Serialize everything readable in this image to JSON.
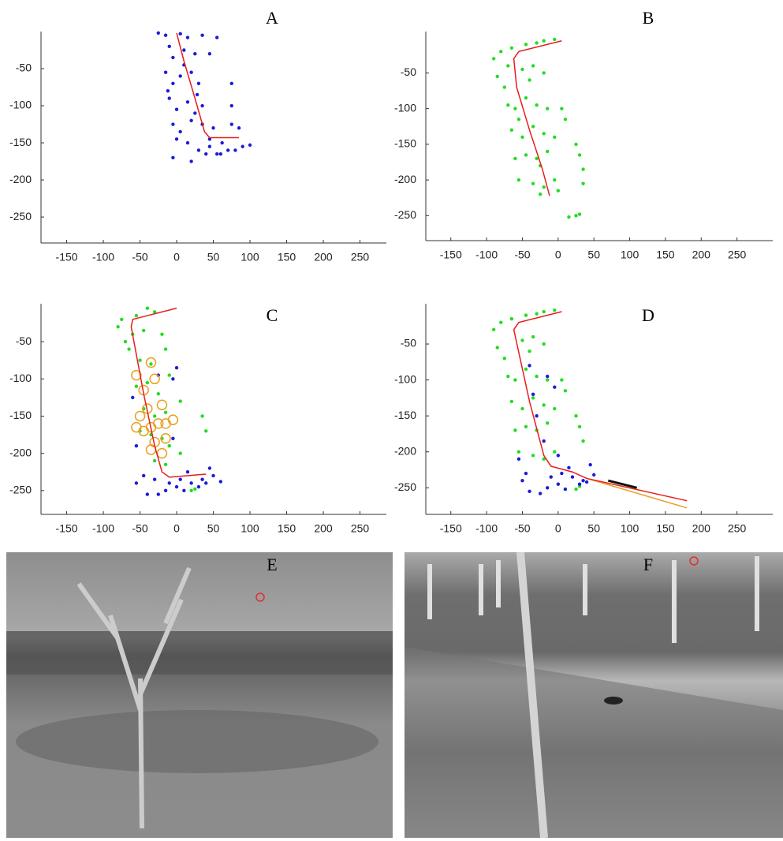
{
  "chart_data": [
    {
      "type": "scatter",
      "label": "A",
      "xlim": [
        -185,
        286
      ],
      "ylim": [
        -285,
        0
      ],
      "xticks": [
        -150,
        -100,
        -50,
        0,
        50,
        100,
        150,
        200,
        250
      ],
      "yticks": [
        -50,
        -100,
        -150,
        -200,
        -250
      ],
      "series": [
        {
          "marker": "dot",
          "color": "#1c1cd8",
          "x": [
            -25,
            -15,
            5,
            15,
            35,
            55,
            -10,
            -5,
            10,
            25,
            45,
            -15,
            -5,
            5,
            20,
            30,
            75,
            -10,
            0,
            15,
            25,
            35,
            75,
            -5,
            5,
            20,
            35,
            50,
            75,
            85,
            15,
            30,
            45,
            55,
            70,
            90,
            100,
            -5,
            20,
            40,
            60,
            80,
            0,
            45,
            10,
            28,
            -12,
            62
          ],
          "values": [
            -2,
            -5,
            -3,
            -8,
            -5,
            -8,
            -20,
            -35,
            -25,
            -30,
            -30,
            -55,
            -70,
            -60,
            -55,
            -70,
            -70,
            -90,
            -105,
            -95,
            -110,
            -100,
            -100,
            -125,
            -135,
            -120,
            -125,
            -130,
            -125,
            -130,
            -150,
            -160,
            -155,
            -165,
            -160,
            -155,
            -153,
            -170,
            -175,
            -165,
            -165,
            -160,
            -145,
            -145,
            -45,
            -85,
            -80,
            -150
          ]
        },
        {
          "marker": "line",
          "color": "#e81c1c",
          "x": [
            0,
            10,
            25,
            38,
            45,
            85
          ],
          "values": [
            -2,
            -40,
            -90,
            -135,
            -143,
            -143
          ]
        }
      ]
    },
    {
      "type": "scatter",
      "label": "B",
      "xlim": [
        -185,
        300
      ],
      "ylim": [
        -285,
        8
      ],
      "xticks": [
        -150,
        -100,
        -50,
        0,
        50,
        100,
        150,
        200,
        250
      ],
      "yticks": [
        -50,
        -100,
        -150,
        -200,
        -250
      ],
      "series": [
        {
          "marker": "dot",
          "color": "#22dd22",
          "x": [
            -20,
            -5,
            -30,
            -80,
            -90,
            -65,
            -45,
            -85,
            -75,
            -40,
            -35,
            -50,
            -20,
            -70,
            -60,
            -45,
            -30,
            -15,
            5,
            -65,
            -50,
            -35,
            -20,
            -5,
            10,
            -60,
            -45,
            -30,
            -15,
            25,
            35,
            -55,
            -35,
            -20,
            -5,
            0,
            30,
            -25,
            15,
            25,
            30,
            35,
            -70,
            -55,
            -25
          ],
          "values": [
            -5,
            -3,
            -8,
            -20,
            -30,
            -15,
            -10,
            -55,
            -70,
            -60,
            -40,
            -45,
            -50,
            -95,
            -100,
            -85,
            -95,
            -100,
            -100,
            -130,
            -140,
            -125,
            -135,
            -140,
            -115,
            -170,
            -165,
            -170,
            -160,
            -150,
            -185,
            -200,
            -205,
            -210,
            -200,
            -215,
            -165,
            -220,
            -252,
            -250,
            -248,
            -205,
            -40,
            -115,
            -180
          ]
        },
        {
          "marker": "line",
          "color": "#e81c1c",
          "x": [
            5,
            -55,
            -62,
            -58,
            -40,
            -22,
            -12
          ],
          "values": [
            -5,
            -20,
            -30,
            -70,
            -130,
            -185,
            -222
          ]
        }
      ]
    },
    {
      "type": "scatter",
      "label": "C",
      "xlim": [
        -185,
        286
      ],
      "ylim": [
        -282,
        1
      ],
      "xticks": [
        -150,
        -100,
        -50,
        0,
        50,
        100,
        150,
        200,
        250
      ],
      "yticks": [
        -50,
        -100,
        -150,
        -200,
        -250
      ],
      "series": [
        {
          "marker": "dot",
          "color": "#22dd22",
          "x": [
            -40,
            -30,
            -55,
            -75,
            -80,
            -60,
            -45,
            -20,
            -15,
            -65,
            -50,
            -35,
            -55,
            -40,
            -25,
            -10,
            5,
            -45,
            -30,
            -15,
            -50,
            -35,
            -20,
            -10,
            5,
            40,
            35,
            -30,
            -15,
            20,
            25,
            -70
          ],
          "values": [
            -5,
            -10,
            -15,
            -20,
            -30,
            -40,
            -35,
            -40,
            -60,
            -60,
            -75,
            -80,
            -110,
            -105,
            -120,
            -95,
            -130,
            -140,
            -150,
            -145,
            -170,
            -175,
            -180,
            -190,
            -200,
            -170,
            -150,
            -210,
            -215,
            -250,
            -248,
            -50
          ]
        },
        {
          "marker": "dot",
          "color": "#1c1cd8",
          "x": [
            0,
            -5,
            -25,
            -60,
            -55,
            -45,
            -30,
            -10,
            5,
            20,
            35,
            50,
            60,
            -40,
            -25,
            -15,
            0,
            10,
            30,
            40,
            -55,
            15,
            45,
            -5
          ],
          "values": [
            -85,
            -100,
            -95,
            -125,
            -190,
            -230,
            -235,
            -240,
            -235,
            -240,
            -235,
            -230,
            -238,
            -255,
            -255,
            -250,
            -245,
            -250,
            -245,
            -240,
            -240,
            -225,
            -220,
            -180
          ]
        },
        {
          "marker": "ring",
          "color": "#e8a020",
          "x": [
            -55,
            -35,
            -30,
            -45,
            -50,
            -40,
            -20,
            -15,
            -5,
            -55,
            -35,
            -45,
            -25,
            -30,
            -15,
            -35,
            -20
          ],
          "values": [
            -95,
            -78,
            -100,
            -115,
            -150,
            -140,
            -135,
            -160,
            -155,
            -165,
            -165,
            -170,
            -160,
            -185,
            -180,
            -195,
            -200
          ]
        },
        {
          "marker": "line",
          "color": "#e81c1c",
          "x": [
            0,
            -60,
            -62,
            -45,
            -30,
            -20,
            -10,
            40
          ],
          "values": [
            -5,
            -20,
            -30,
            -120,
            -190,
            -225,
            -232,
            -228
          ]
        }
      ]
    },
    {
      "type": "scatter",
      "label": "D",
      "xlim": [
        -185,
        300
      ],
      "ylim": [
        -287,
        6
      ],
      "xticks": [
        -150,
        -100,
        -50,
        0,
        50,
        100,
        150,
        200,
        250
      ],
      "yticks": [
        -50,
        -100,
        -150,
        -200,
        -250
      ],
      "series": [
        {
          "marker": "dot",
          "color": "#22dd22",
          "x": [
            -20,
            -5,
            -30,
            -80,
            -90,
            -65,
            -45,
            -85,
            -75,
            -40,
            -35,
            -50,
            -20,
            -70,
            -60,
            -45,
            -30,
            -15,
            5,
            -65,
            -50,
            -35,
            -20,
            -5,
            10,
            -60,
            -45,
            -30,
            -15,
            25,
            35,
            -55,
            -35,
            -20,
            -5,
            30,
            25,
            30
          ],
          "values": [
            -5,
            -3,
            -8,
            -20,
            -30,
            -15,
            -10,
            -55,
            -70,
            -60,
            -40,
            -45,
            -50,
            -95,
            -100,
            -85,
            -95,
            -100,
            -100,
            -130,
            -140,
            -125,
            -135,
            -140,
            -115,
            -170,
            -165,
            -170,
            -160,
            -150,
            -185,
            -200,
            -205,
            -210,
            -200,
            -165,
            -252,
            -248
          ]
        },
        {
          "marker": "dot",
          "color": "#1c1cd8",
          "x": [
            -40,
            -15,
            -5,
            -30,
            -55,
            -45,
            -10,
            5,
            20,
            35,
            50,
            -40,
            -25,
            -15,
            0,
            10,
            30,
            40,
            -50,
            15,
            45,
            -20,
            -35,
            0
          ],
          "values": [
            -80,
            -95,
            -110,
            -150,
            -210,
            -230,
            -235,
            -230,
            -235,
            -240,
            -232,
            -255,
            -258,
            -250,
            -245,
            -252,
            -245,
            -242,
            -240,
            -222,
            -218,
            -185,
            -120,
            -205
          ]
        },
        {
          "marker": "line",
          "color": "#e8a020",
          "x": [
            40,
            180
          ],
          "values": [
            -237,
            -278
          ]
        },
        {
          "marker": "line",
          "color": "#111111",
          "x": [
            70,
            110
          ],
          "values": [
            -240,
            -250
          ]
        },
        {
          "marker": "line",
          "color": "#e81c1c",
          "x": [
            5,
            -55,
            -62,
            -40,
            -20,
            -10,
            20,
            40,
            180
          ],
          "values": [
            -5,
            -20,
            -30,
            -130,
            -205,
            -220,
            -228,
            -237,
            -268
          ]
        }
      ]
    }
  ],
  "images": [
    {
      "label": "E"
    },
    {
      "label": "F"
    }
  ]
}
